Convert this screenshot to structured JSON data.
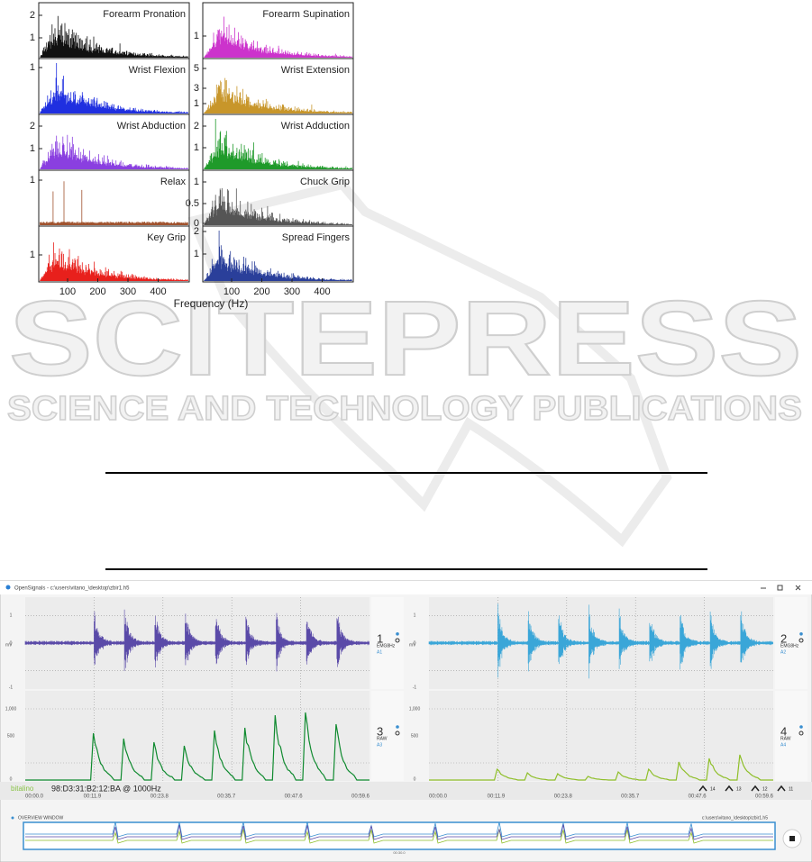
{
  "figure": {
    "panels": [
      {
        "title": "Forearm Pronation",
        "yticks": [
          "2",
          "1"
        ],
        "color": "#111111"
      },
      {
        "title": "Wrist Flexion",
        "yticks": [
          "1"
        ],
        "color": "#1f2fe0"
      },
      {
        "title": "Wrist Abduction",
        "yticks": [
          "2",
          "1"
        ],
        "color": "#8a3fe0"
      },
      {
        "title": "Relax",
        "yticks": [
          "1"
        ],
        "color": "#a0522d"
      },
      {
        "title": "Key Grip",
        "yticks": [
          "1"
        ],
        "color": "#e8201c"
      },
      {
        "title": "Forearm Supination",
        "yticks": [
          "1"
        ],
        "color": "#cc33cc"
      },
      {
        "title": "Wrist Extension",
        "yticks": [
          "5",
          "3",
          "1"
        ],
        "color": "#c8962a"
      },
      {
        "title": "Wrist Adduction",
        "yticks": [
          "2",
          "1"
        ],
        "color": "#1f9a2a"
      },
      {
        "title": "Chuck Grip",
        "yticks": [
          "1",
          "0.5",
          "0"
        ],
        "color": "#555555"
      },
      {
        "title": "Spread Fingers",
        "yticks": [
          "2",
          "1"
        ],
        "color": "#2a3f9a"
      }
    ],
    "xticks": [
      "100",
      "200",
      "300",
      "400"
    ],
    "xlabel": "Frequency (Hz)"
  },
  "watermark": {
    "title": "SCITEPRESS",
    "subtitle": "SCIENCE AND TECHNOLOGY PUBLICATIONS"
  },
  "screenshot": {
    "window_title": "OpenSignals - c:\\users\\vitano_\\desktop\\zbir1.h5",
    "channels": [
      {
        "number": "1",
        "label": "EMG8Hz",
        "port": "A1"
      },
      {
        "number": "2",
        "label": "EMG8Hz",
        "port": "A2"
      },
      {
        "number": "3",
        "label": "RAW",
        "port": "A3"
      },
      {
        "number": "4",
        "label": "RAW",
        "port": "A4"
      }
    ],
    "emg_yticks": [
      "1",
      "0",
      "-1"
    ],
    "emg_unit": "mV",
    "raw_yticks": [
      "1,000",
      "500",
      "0"
    ],
    "time_ticks": [
      "00:00.0",
      "00:11.9",
      "00:23.8",
      "00:35.7",
      "00:47.6",
      "00:59.6"
    ],
    "device_brand": "bitalino",
    "device": "98:D3:31:B2:12:BA @ 1000Hz",
    "controls": [
      "14",
      "13",
      "12",
      "11"
    ],
    "overview_title": "OVERVIEW WINDOW",
    "overview_file": "c:\\users\\vitano_\\desktop\\zbir1.h5",
    "overview_time": "00:30.0"
  }
}
